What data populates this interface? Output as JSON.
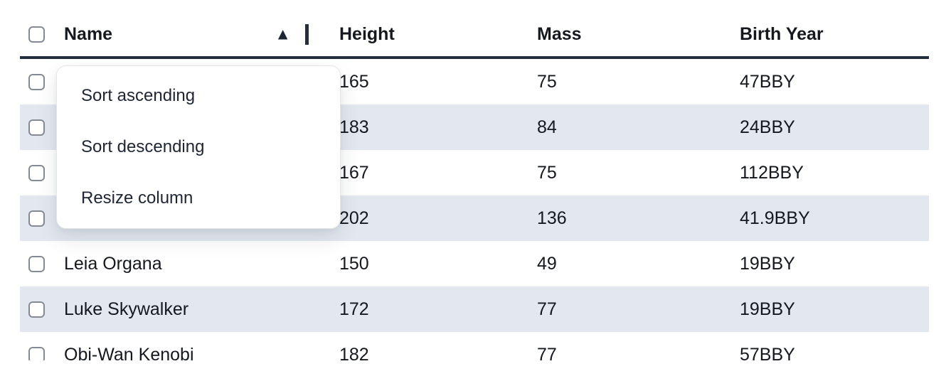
{
  "table": {
    "columns": [
      {
        "key": "name",
        "label": "Name"
      },
      {
        "key": "height",
        "label": "Height"
      },
      {
        "key": "mass",
        "label": "Mass"
      },
      {
        "key": "birth_year",
        "label": "Birth Year"
      }
    ],
    "sort": {
      "column": "Name",
      "direction": "ascending",
      "indicator_icon": "▲"
    },
    "rows": [
      {
        "name": "",
        "height": "165",
        "mass": "75",
        "birth_year": "47BBY",
        "name_obscured_by_menu": true
      },
      {
        "name": "",
        "height": "183",
        "mass": "84",
        "birth_year": "24BBY",
        "name_obscured_by_menu": true
      },
      {
        "name": "",
        "height": "167",
        "mass": "75",
        "birth_year": "112BBY",
        "name_obscured_by_menu": true
      },
      {
        "name": "",
        "height": "202",
        "mass": "136",
        "birth_year": "41.9BBY",
        "name_obscured_by_menu": true
      },
      {
        "name": "Leia Organa",
        "height": "150",
        "mass": "49",
        "birth_year": "19BBY",
        "name_obscured_by_menu": false
      },
      {
        "name": "Luke Skywalker",
        "height": "172",
        "mass": "77",
        "birth_year": "19BBY",
        "name_obscured_by_menu": false
      },
      {
        "name": "Obi-Wan Kenobi",
        "height": "182",
        "mass": "77",
        "birth_year": "57BBY",
        "name_obscured_by_menu": false
      }
    ]
  },
  "context_menu": {
    "attached_to_column": "Name",
    "items": [
      {
        "label": "Sort ascending"
      },
      {
        "label": "Sort descending"
      },
      {
        "label": "Resize column"
      }
    ]
  },
  "colors": {
    "header_border": "#232e3f",
    "row_stripe": "#e3e8f0",
    "text": "#15181e",
    "menu_text": "#1e2533",
    "checkbox_border": "#858b94",
    "menu_border": "#e6e6e9"
  }
}
